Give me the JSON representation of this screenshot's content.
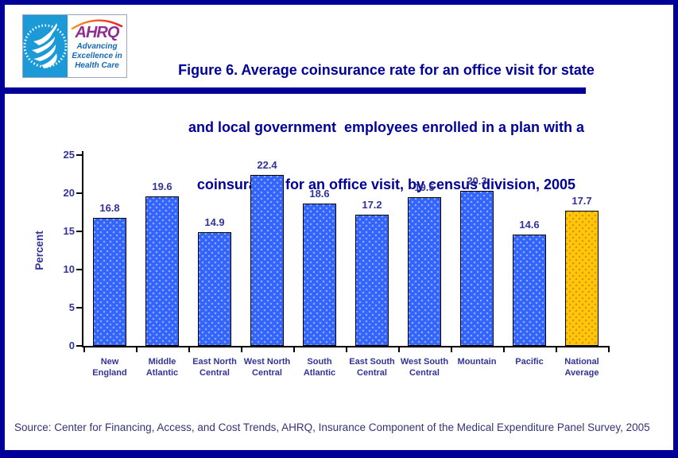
{
  "colors": {
    "navy": "#000099",
    "chart_text": "#333399",
    "source_text": "#333377",
    "bar_blue": "#3365FB",
    "bar_gold": "#FFC60B",
    "hhs_blue": "#1B9AD7",
    "ahrq_purple": "#8F2E90",
    "tagline_blue": "#1568B6",
    "swoosh_start": "#F7941E",
    "swoosh_end": "#ED1C24"
  },
  "header": {
    "logo": {
      "hhs_seal": "hhs-eagle-seal",
      "acronym": "AHRQ",
      "tagline_line1": "Advancing",
      "tagline_line2": "Excellence in",
      "tagline_line3": "Health Care"
    },
    "title_line1": "Figure 6. Average coinsurance rate for an office visit for state",
    "title_line2": "and local government  employees enrolled in a plan with a",
    "title_line3": "coinsurance for an office visit, by census division, 2005"
  },
  "chart_data": {
    "type": "bar",
    "title": "Figure 6. Average coinsurance rate for an office visit for state and local government employees enrolled in a plan with a coinsurance for an office visit, by census division, 2005",
    "categories": [
      [
        "New",
        "England"
      ],
      [
        "Middle",
        "Atlantic"
      ],
      [
        "East North",
        "Central"
      ],
      [
        "West North",
        "Central"
      ],
      [
        "South",
        "Atlantic"
      ],
      [
        "East South",
        "Central"
      ],
      [
        "West South",
        "Central"
      ],
      [
        "Mountain"
      ],
      [
        "Pacific"
      ],
      [
        "National",
        "Average"
      ]
    ],
    "values": [
      16.8,
      19.6,
      14.9,
      22.4,
      18.6,
      17.2,
      19.5,
      20.3,
      14.6,
      17.7
    ],
    "xlabel": "",
    "ylabel": "Percent",
    "ylim": [
      0,
      25
    ],
    "yticks": [
      0,
      5,
      10,
      15,
      20,
      25
    ],
    "grid": false,
    "legend": "none",
    "bar_color": "#3365FB",
    "highlight_index": 9,
    "highlight_color": "#FFC60B",
    "label_color": "#333399"
  },
  "footer": {
    "source": "Source: Center for Financing, Access, and Cost Trends, AHRQ, Insurance Component of the Medical Expenditure Panel Survey, 2005"
  }
}
